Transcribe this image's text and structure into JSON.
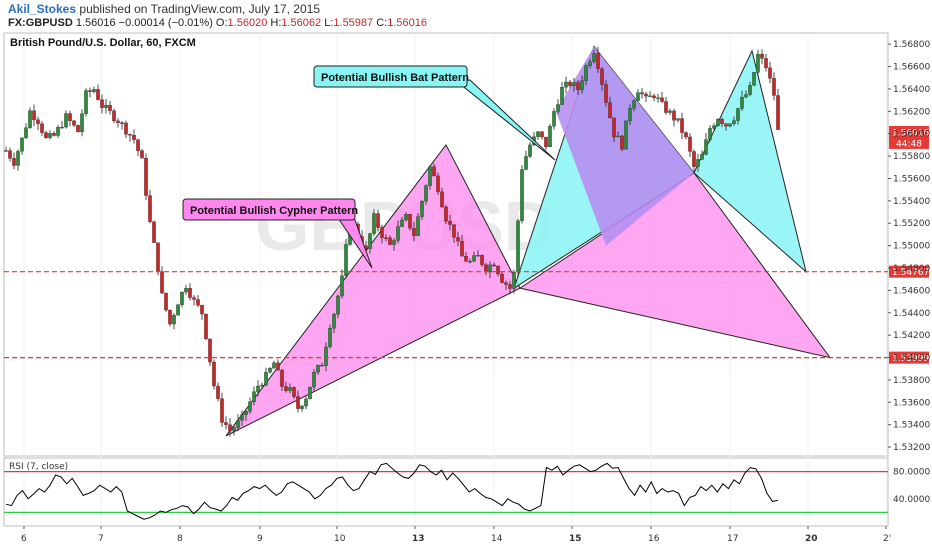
{
  "header": {
    "author": "Akil_Stokes",
    "published_text": "published on TradingView.com, July 17, 2015",
    "symbol": "FX:GBPUSD",
    "last": "1.56016",
    "change": "−0.00014 (−0.01%)",
    "o_label": "O:",
    "o_value": "1.56020",
    "h_label": "H:",
    "h_value": "1.56062",
    "l_label": "L:",
    "l_value": "1.55987",
    "c_label": "C:",
    "c_value": "1.56016"
  },
  "chart_data": {
    "type": "candlestick",
    "title": "British Pound/U.S. Dollar, 60, FXCM",
    "watermark": "GBPUSD",
    "colors": {
      "up": "#2e8b3d",
      "down": "#c62828",
      "wick": "#222222",
      "cypher": "#ff88ee",
      "bat": "#88f4f4",
      "overlap": "#b78ff2",
      "hline": "#e53935",
      "rsi": "#000000",
      "rsi_high": "#e53935",
      "rsi_low": "#2ecc40"
    },
    "x_axis": {
      "ticks": [
        "6",
        "7",
        "8",
        "9",
        "10",
        "13",
        "14",
        "15",
        "16",
        "17",
        "20",
        "2'"
      ],
      "bold_ticks": [
        "13",
        "15",
        "20"
      ]
    },
    "y_axis": {
      "ticks": [
        "1.56800",
        "1.56600",
        "1.56400",
        "1.56200",
        "1.56000",
        "1.55800",
        "1.55600",
        "1.55400",
        "1.55200",
        "1.55000",
        "1.54800",
        "1.54600",
        "1.54400",
        "1.54200",
        "1.54000",
        "1.53800",
        "1.53600",
        "1.53400",
        "1.53200"
      ],
      "ylim": [
        1.5312,
        1.569
      ]
    },
    "candles_key": [
      [
        0,
        1.5585
      ],
      [
        4,
        1.5575
      ],
      [
        8,
        1.5595
      ],
      [
        12,
        1.562
      ],
      [
        16,
        1.5612
      ],
      [
        20,
        1.5595
      ],
      [
        24,
        1.5598
      ],
      [
        30,
        1.5615
      ],
      [
        36,
        1.5602
      ],
      [
        40,
        1.5635
      ],
      [
        44,
        1.564
      ],
      [
        48,
        1.5625
      ],
      [
        56,
        1.5612
      ],
      [
        64,
        1.5595
      ],
      [
        68,
        1.5575
      ],
      [
        72,
        1.552
      ],
      [
        76,
        1.548
      ],
      [
        78,
        1.5455
      ],
      [
        82,
        1.543
      ],
      [
        86,
        1.545
      ],
      [
        90,
        1.5465
      ],
      [
        94,
        1.545
      ],
      [
        98,
        1.544
      ],
      [
        100,
        1.542
      ],
      [
        104,
        1.5375
      ],
      [
        108,
        1.5345
      ],
      [
        112,
        1.5335
      ],
      [
        114,
        1.5338
      ],
      [
        118,
        1.5345
      ],
      [
        122,
        1.536
      ],
      [
        126,
        1.5375
      ],
      [
        130,
        1.5383
      ],
      [
        134,
        1.5395
      ],
      [
        138,
        1.5375
      ],
      [
        142,
        1.537
      ],
      [
        146,
        1.5355
      ],
      [
        150,
        1.5365
      ],
      [
        154,
        1.5385
      ],
      [
        158,
        1.5395
      ],
      [
        162,
        1.543
      ],
      [
        164,
        1.544
      ],
      [
        168,
        1.547
      ],
      [
        172,
        1.5525
      ],
      [
        176,
        1.551
      ],
      [
        180,
        1.5495
      ],
      [
        184,
        1.5525
      ],
      [
        188,
        1.551
      ],
      [
        192,
        1.55
      ],
      [
        196,
        1.5515
      ],
      [
        200,
        1.5525
      ],
      [
        204,
        1.551
      ],
      [
        208,
        1.554
      ],
      [
        212,
        1.557
      ],
      [
        216,
        1.5552
      ],
      [
        220,
        1.5525
      ],
      [
        224,
        1.551
      ],
      [
        228,
        1.549
      ],
      [
        232,
        1.5485
      ],
      [
        236,
        1.549
      ],
      [
        240,
        1.548
      ],
      [
        244,
        1.5485
      ],
      [
        248,
        1.547
      ],
      [
        252,
        1.5462
      ],
      [
        254,
        1.5475
      ],
      [
        258,
        1.557
      ],
      [
        262,
        1.559
      ],
      [
        266,
        1.56
      ],
      [
        270,
        1.559
      ],
      [
        274,
        1.562
      ],
      [
        278,
        1.564
      ],
      [
        282,
        1.5645
      ],
      [
        286,
        1.564
      ],
      [
        290,
        1.566
      ],
      [
        294,
        1.5675
      ],
      [
        296,
        1.5662
      ],
      [
        300,
        1.563
      ],
      [
        304,
        1.56
      ],
      [
        308,
        1.559
      ],
      [
        312,
        1.5625
      ],
      [
        316,
        1.564
      ],
      [
        320,
        1.563
      ],
      [
        324,
        1.5635
      ],
      [
        328,
        1.5625
      ],
      [
        332,
        1.5618
      ],
      [
        336,
        1.561
      ],
      [
        340,
        1.5595
      ],
      [
        344,
        1.557
      ],
      [
        348,
        1.558
      ],
      [
        352,
        1.5605
      ],
      [
        356,
        1.5615
      ],
      [
        360,
        1.5608
      ],
      [
        364,
        1.5615
      ],
      [
        368,
        1.563
      ],
      [
        372,
        1.564
      ],
      [
        376,
        1.567
      ],
      [
        380,
        1.566
      ],
      [
        384,
        1.5635
      ],
      [
        386,
        1.5602
      ]
    ],
    "patterns": {
      "cypher": {
        "label": "Potential Bullish Cypher Pattern",
        "points": [
          [
            1.533,
            110
          ],
          [
            1.5585,
            208
          ],
          [
            1.549,
            250
          ],
          [
            1.538,
            173
          ],
          [
            1.547,
            250
          ]
        ],
        "leg2": [
          [
            1.547,
            250
          ],
          [
            1.5475,
            250
          ],
          [
            1.5399,
            394
          ]
        ]
      },
      "bat": {
        "label": "Potential Bullish Bat Pattern",
        "points": [
          [
            1.5462,
            252
          ],
          [
            1.5675,
            293
          ],
          [
            1.5565,
            337
          ],
          [
            1.567,
            372
          ],
          [
            1.54767,
            395
          ]
        ]
      }
    },
    "levels": [
      {
        "value": 1.54767,
        "label": "1.54767"
      },
      {
        "value": 1.53999,
        "label": "1.53999"
      }
    ],
    "price_tag": {
      "value": "1.56016",
      "countdown": "44:48"
    },
    "rsi": {
      "title": "RSI (7, close)",
      "ticks": [
        "80.0000",
        "40.0000"
      ],
      "overbought": 80,
      "oversold": 20,
      "values": [
        32,
        30,
        45,
        52,
        40,
        47,
        55,
        50,
        60,
        75,
        72,
        62,
        70,
        58,
        45,
        48,
        52,
        60,
        55,
        50,
        58,
        50,
        22,
        18,
        14,
        10,
        12,
        16,
        22,
        20,
        24,
        26,
        30,
        28,
        18,
        25,
        35,
        27,
        25,
        22,
        30,
        42,
        38,
        48,
        52,
        58,
        55,
        60,
        52,
        45,
        50,
        62,
        65,
        60,
        55,
        50,
        40,
        45,
        55,
        60,
        70,
        72,
        60,
        52,
        55,
        68,
        80,
        76,
        90,
        92,
        85,
        78,
        72,
        70,
        78,
        90,
        88,
        80,
        75,
        82,
        68,
        78,
        70,
        60,
        50,
        55,
        48,
        42,
        40,
        35,
        30,
        40,
        35,
        32,
        25,
        22,
        26,
        30,
        86,
        82,
        88,
        75,
        82,
        88,
        90,
        85,
        80,
        82,
        88,
        92,
        85,
        86,
        70,
        55,
        45,
        60,
        50,
        65,
        48,
        55,
        50,
        52,
        48,
        30,
        42,
        45,
        58,
        52,
        60,
        50,
        62,
        55,
        68,
        62,
        78,
        86,
        84,
        70,
        48,
        36,
        38
      ]
    }
  }
}
